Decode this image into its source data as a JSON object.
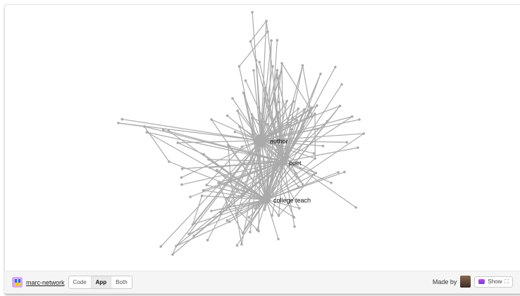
{
  "app": {
    "title": "marc-network",
    "made_by": "Made by",
    "show_label": "Show"
  },
  "view_modes": [
    {
      "label": "Code",
      "active": false
    },
    {
      "label": "App",
      "active": true
    },
    {
      "label": "Both",
      "active": false
    }
  ],
  "graph": {
    "edge_color": "#aaaaaa",
    "node_color": "#aaaaaa",
    "labels": [
      "author",
      "poet",
      "college teach"
    ]
  }
}
